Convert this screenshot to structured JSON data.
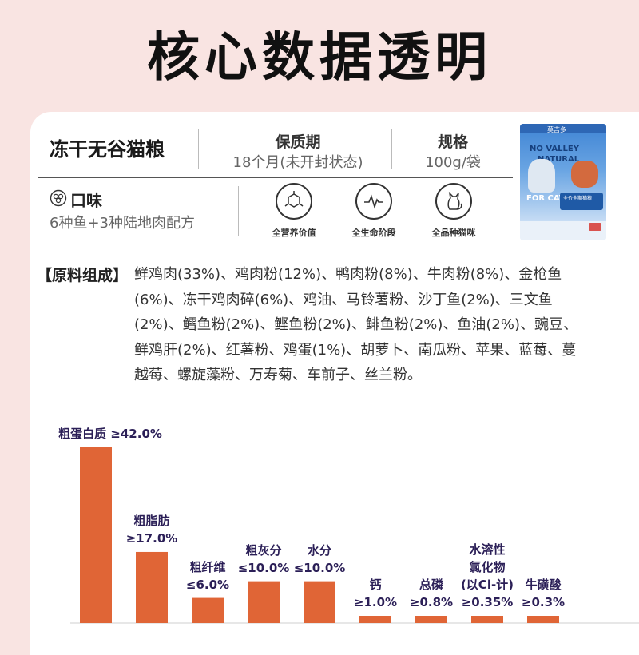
{
  "header": {
    "title": "核心数据透明"
  },
  "info": {
    "product_name": "冻干无谷猫粮",
    "shelf_life": {
      "title": "保质期",
      "value": "18个月(未开封状态)"
    },
    "spec": {
      "title": "规格",
      "value": "100g/袋"
    },
    "taste": {
      "title": "口味",
      "value": "6种鱼+3种陆地肉配方"
    },
    "features": [
      {
        "icon": "nutrition-molecule-icon",
        "label": "全营养价值"
      },
      {
        "icon": "heartbeat-icon",
        "label": "全生命阶段"
      },
      {
        "icon": "cat-icon",
        "label": "全品种猫咪"
      }
    ]
  },
  "package": {
    "brand": "莫吉多",
    "line1": "NO VALLEY",
    "line2": "NATURAL",
    "for_cat": "FOR CAT",
    "label": "全价全期猫粮"
  },
  "ingredients": {
    "label": "【原料组成】",
    "text": "鲜鸡肉(33%)、鸡肉粉(12%)、鸭肉粉(8%)、牛肉粉(8%)、金枪鱼(6%)、冻干鸡肉碎(6%)、鸡油、马铃薯粉、沙丁鱼(2%)、三文鱼(2%)、鳕鱼粉(2%)、鲣鱼粉(2%)、鲱鱼粉(2%)、鱼油(2%)、豌豆、鲜鸡肝(2%)、红薯粉、鸡蛋(1%)、胡萝卜、南瓜粉、苹果、蓝莓、蔓越莓、螺旋藻粉、万寿菊、车前子、丝兰粉。"
  },
  "chart_data": {
    "type": "bar",
    "categories": [
      "粗蛋白质",
      "粗脂肪",
      "粗纤维",
      "粗灰分",
      "水分",
      "钙",
      "总磷",
      "水溶性氯化物(以Cl-计)",
      "牛磺酸"
    ],
    "values": [
      42.0,
      17.0,
      6.0,
      10.0,
      10.0,
      1.0,
      0.8,
      0.35,
      0.3
    ],
    "value_labels": [
      "≥42.0%",
      "≥17.0%",
      "≤6.0%",
      "≤10.0%",
      "≤10.0%",
      "≥1.0%",
      "≥0.8%",
      "≥0.35%",
      "≥0.3%"
    ],
    "label_lines": [
      [
        "粗蛋白质 ≥42.0%"
      ],
      [
        "粗脂肪",
        "≥17.0%"
      ],
      [
        "粗纤维",
        "≤6.0%"
      ],
      [
        "粗灰分",
        "≤10.0%"
      ],
      [
        "水分",
        "≤10.0%"
      ],
      [
        "钙",
        "≥1.0%"
      ],
      [
        "总磷",
        "≥0.8%"
      ],
      [
        "水溶性",
        "氯化物",
        "(以Cl-计)",
        "≥0.35%"
      ],
      [
        "牛磺酸",
        "≥0.3%"
      ]
    ],
    "ylim": [
      0,
      42
    ],
    "bar_color": "#e06536",
    "label_color": "#2b1f57",
    "title": "",
    "xlabel": "",
    "ylabel": ""
  }
}
